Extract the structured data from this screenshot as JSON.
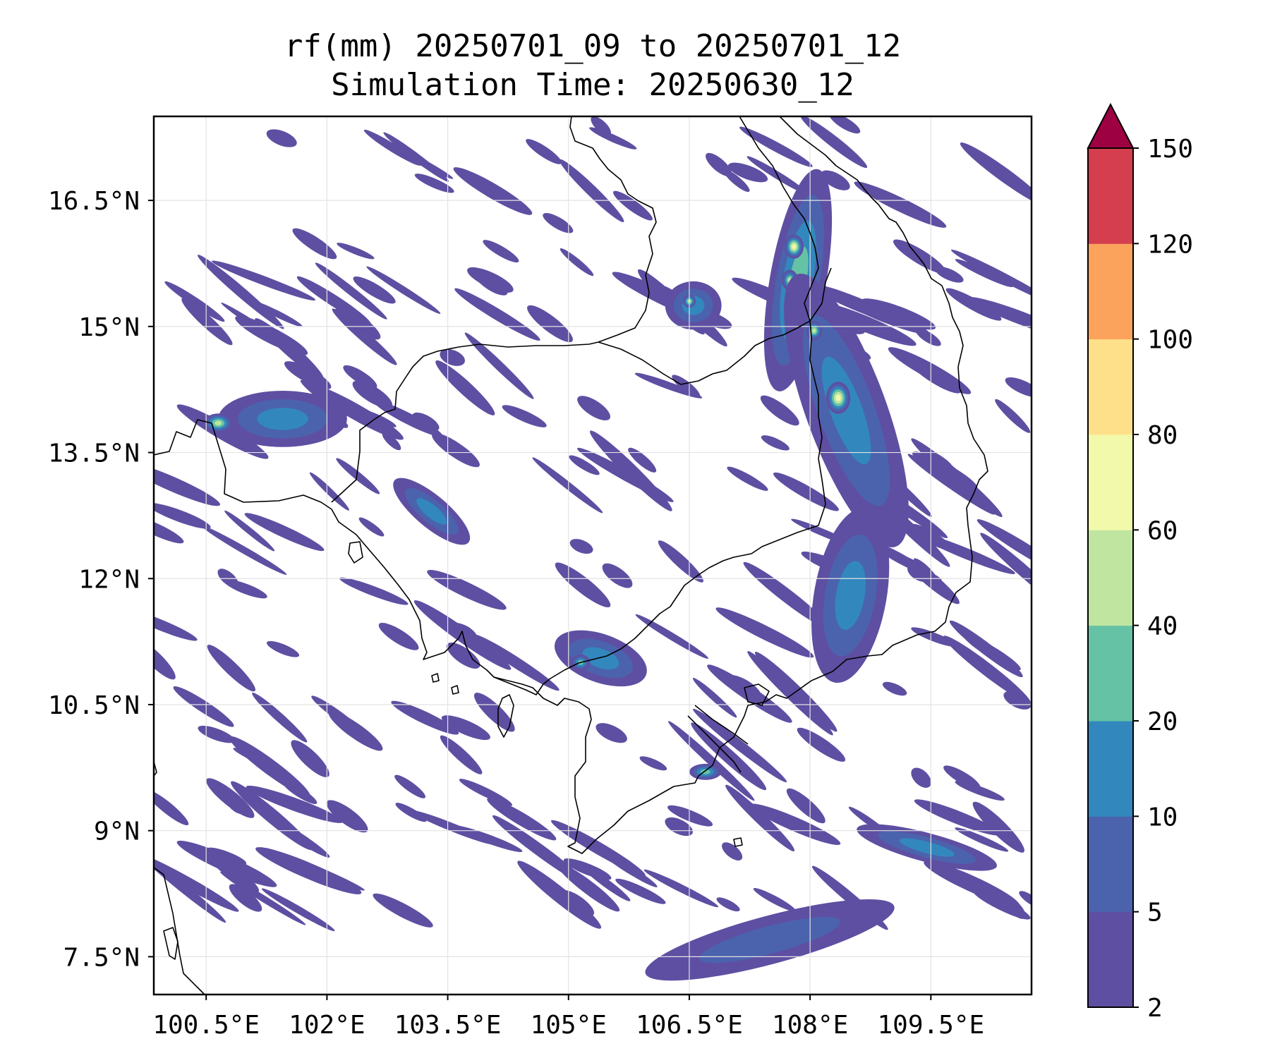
{
  "title": {
    "line1": "rf(mm) 20250701_09 to 20250701_12",
    "line2": "Simulation Time: 20250630_12"
  },
  "map": {
    "lon_range": [
      99.85,
      110.75
    ],
    "lat_range": [
      7.05,
      17.5
    ],
    "lon_ticks": [
      {
        "value": 100.5,
        "label": "100.5°E"
      },
      {
        "value": 102.0,
        "label": "102°E"
      },
      {
        "value": 103.5,
        "label": "103.5°E"
      },
      {
        "value": 105.0,
        "label": "105°E"
      },
      {
        "value": 106.5,
        "label": "106.5°E"
      },
      {
        "value": 108.0,
        "label": "108°E"
      },
      {
        "value": 109.5,
        "label": "109.5°E"
      }
    ],
    "lat_ticks": [
      {
        "value": 16.5,
        "label": "16.5°N"
      },
      {
        "value": 15.0,
        "label": "15°N"
      },
      {
        "value": 13.5,
        "label": "13.5°N"
      },
      {
        "value": 12.0,
        "label": "12°N"
      },
      {
        "value": 10.5,
        "label": "10.5°N"
      },
      {
        "value": 9.0,
        "label": "9°N"
      },
      {
        "value": 7.5,
        "label": "7.5°N"
      }
    ],
    "gridlines": true,
    "features": [
      "coastlines",
      "country-borders"
    ]
  },
  "colorbar": {
    "levels": [
      2,
      5,
      10,
      20,
      40,
      60,
      80,
      100,
      120,
      150
    ],
    "labels": [
      "2",
      "5",
      "10",
      "20",
      "40",
      "60",
      "80",
      "100",
      "120",
      "150"
    ],
    "colors": [
      "#5e4fa2",
      "#4b63ad",
      "#3288bd",
      "#66c2a5",
      "#bfe5a0",
      "#f2f9aa",
      "#fee08b",
      "#fba35c",
      "#d53e4f"
    ],
    "extend_color": "#9e0142",
    "extend": "max"
  },
  "rain_features": [
    {
      "lon": 107.85,
      "lat": 15.55,
      "rx": 0.35,
      "ry": 1.4,
      "rot": 10,
      "level": 3
    },
    {
      "lon": 107.8,
      "lat": 15.95,
      "rx": 0.12,
      "ry": 0.15,
      "rot": 0,
      "level": 5
    },
    {
      "lon": 107.75,
      "lat": 15.55,
      "rx": 0.1,
      "ry": 0.13,
      "rot": 0,
      "level": 4
    },
    {
      "lon": 108.45,
      "lat": 14.0,
      "rx": 0.5,
      "ry": 1.8,
      "rot": -20,
      "level": 2
    },
    {
      "lon": 108.35,
      "lat": 14.15,
      "rx": 0.15,
      "ry": 0.2,
      "rot": 0,
      "level": 5
    },
    {
      "lon": 108.05,
      "lat": 14.95,
      "rx": 0.1,
      "ry": 0.12,
      "rot": 0,
      "level": 4
    },
    {
      "lon": 101.45,
      "lat": 13.9,
      "rx": 0.8,
      "ry": 0.35,
      "rot": 0,
      "level": 2
    },
    {
      "lon": 100.65,
      "lat": 13.85,
      "rx": 0.18,
      "ry": 0.12,
      "rot": 0,
      "level": 4
    },
    {
      "lon": 106.55,
      "lat": 15.25,
      "rx": 0.35,
      "ry": 0.3,
      "rot": 0,
      "level": 2
    },
    {
      "lon": 106.5,
      "lat": 15.3,
      "rx": 0.08,
      "ry": 0.08,
      "rot": 0,
      "level": 4
    },
    {
      "lon": 105.4,
      "lat": 11.05,
      "rx": 0.6,
      "ry": 0.3,
      "rot": 20,
      "level": 2
    },
    {
      "lon": 105.15,
      "lat": 11.0,
      "rx": 0.12,
      "ry": 0.1,
      "rot": 0,
      "level": 3
    },
    {
      "lon": 108.5,
      "lat": 11.8,
      "rx": 0.45,
      "ry": 1.1,
      "rot": 10,
      "level": 2
    },
    {
      "lon": 109.45,
      "lat": 8.8,
      "rx": 0.9,
      "ry": 0.18,
      "rot": 15,
      "level": 2
    },
    {
      "lon": 107.5,
      "lat": 7.7,
      "rx": 1.6,
      "ry": 0.3,
      "rot": -15,
      "level": 1
    },
    {
      "lon": 106.7,
      "lat": 9.7,
      "rx": 0.2,
      "ry": 0.1,
      "rot": 0,
      "level": 3
    },
    {
      "lon": 103.3,
      "lat": 12.8,
      "rx": 0.6,
      "ry": 0.2,
      "rot": 40,
      "level": 2
    }
  ]
}
